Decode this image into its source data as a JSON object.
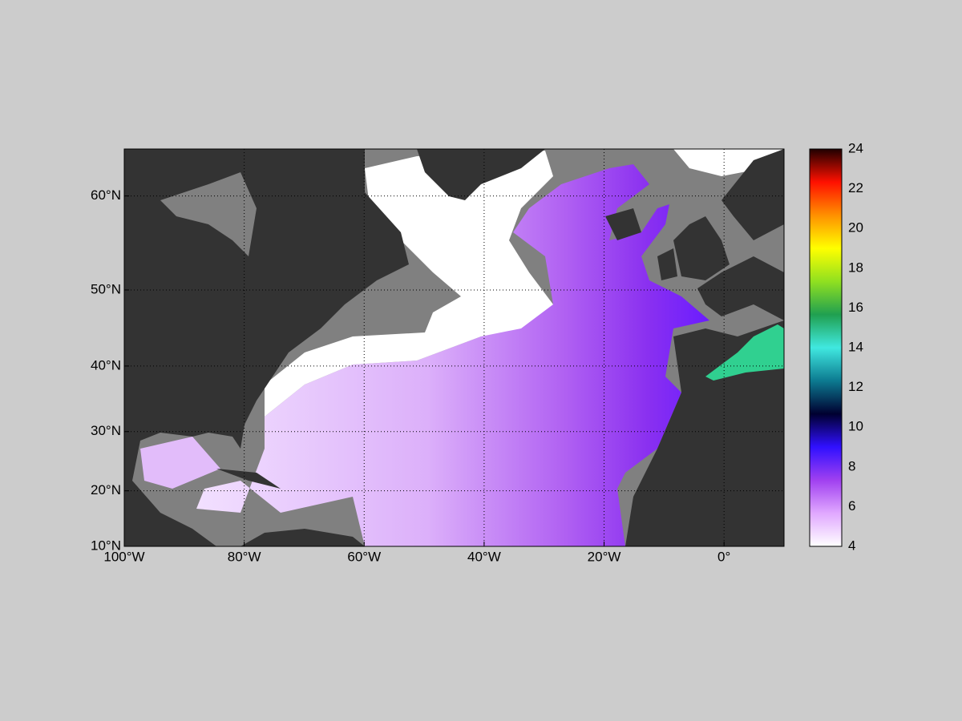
{
  "chart_data": {
    "type": "map",
    "projection": "mercator",
    "xlim": [
      -100,
      10
    ],
    "ylim": [
      10,
      64.1
    ],
    "xticks": [
      {
        "value": -100,
        "label": "100°W"
      },
      {
        "value": -80,
        "label": "80°W"
      },
      {
        "value": -60,
        "label": "60°W"
      },
      {
        "value": -40,
        "label": "40°W"
      },
      {
        "value": -20,
        "label": "20°W"
      },
      {
        "value": 0,
        "label": "0°"
      }
    ],
    "yticks": [
      {
        "value": 10,
        "label": "10°N"
      },
      {
        "value": 20,
        "label": "20°N"
      },
      {
        "value": 30,
        "label": "30°N"
      },
      {
        "value": 40,
        "label": "40°N"
      },
      {
        "value": 50,
        "label": "50°N"
      },
      {
        "value": 60,
        "label": "60°N"
      }
    ],
    "grid": true,
    "colorbar": {
      "clim": [
        4,
        24
      ],
      "ticks": [
        4,
        6,
        8,
        10,
        12,
        14,
        16,
        18,
        20,
        22,
        24
      ],
      "colormap": [
        "#ffffff",
        "#e0a8ff",
        "#a040f0",
        "#3010ff",
        "#000030",
        "#0c7a90",
        "#40e8e0",
        "#20a050",
        "#90e020",
        "#ffff00",
        "#ff9000",
        "#ff1000",
        "#200000"
      ]
    }
  }
}
